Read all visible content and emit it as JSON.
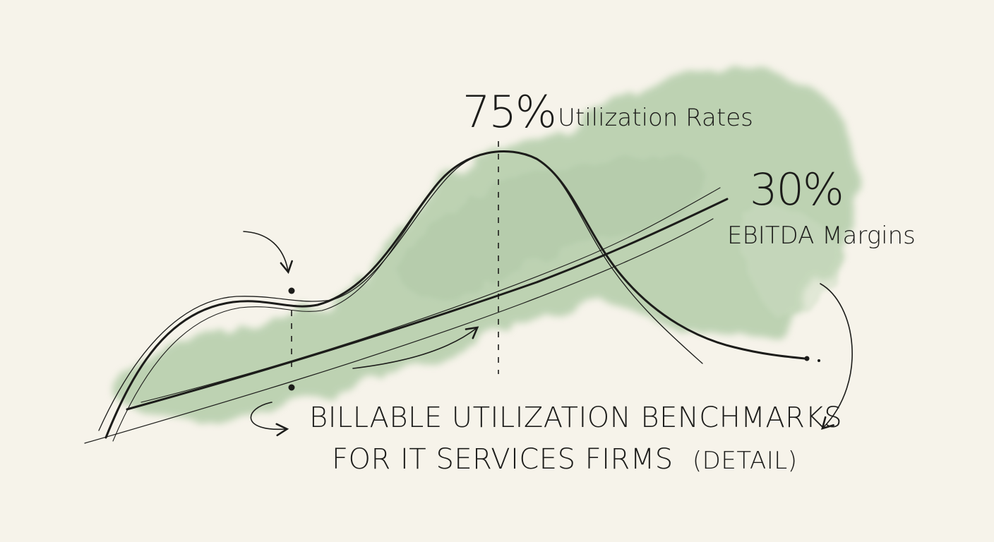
{
  "annotations": {
    "peak_value": "75%",
    "peak_label": "Utilization Rates",
    "margin_value": "30%",
    "margin_label": "EBITDA Margins"
  },
  "title": {
    "line1": "Billable Utilization Benchmarks",
    "line2": "for IT Services Firms",
    "detail": "(detail)"
  },
  "colors": {
    "paper": "#f6f3ea",
    "ink": "#1c1c1a",
    "wash": "#8fb886"
  }
}
